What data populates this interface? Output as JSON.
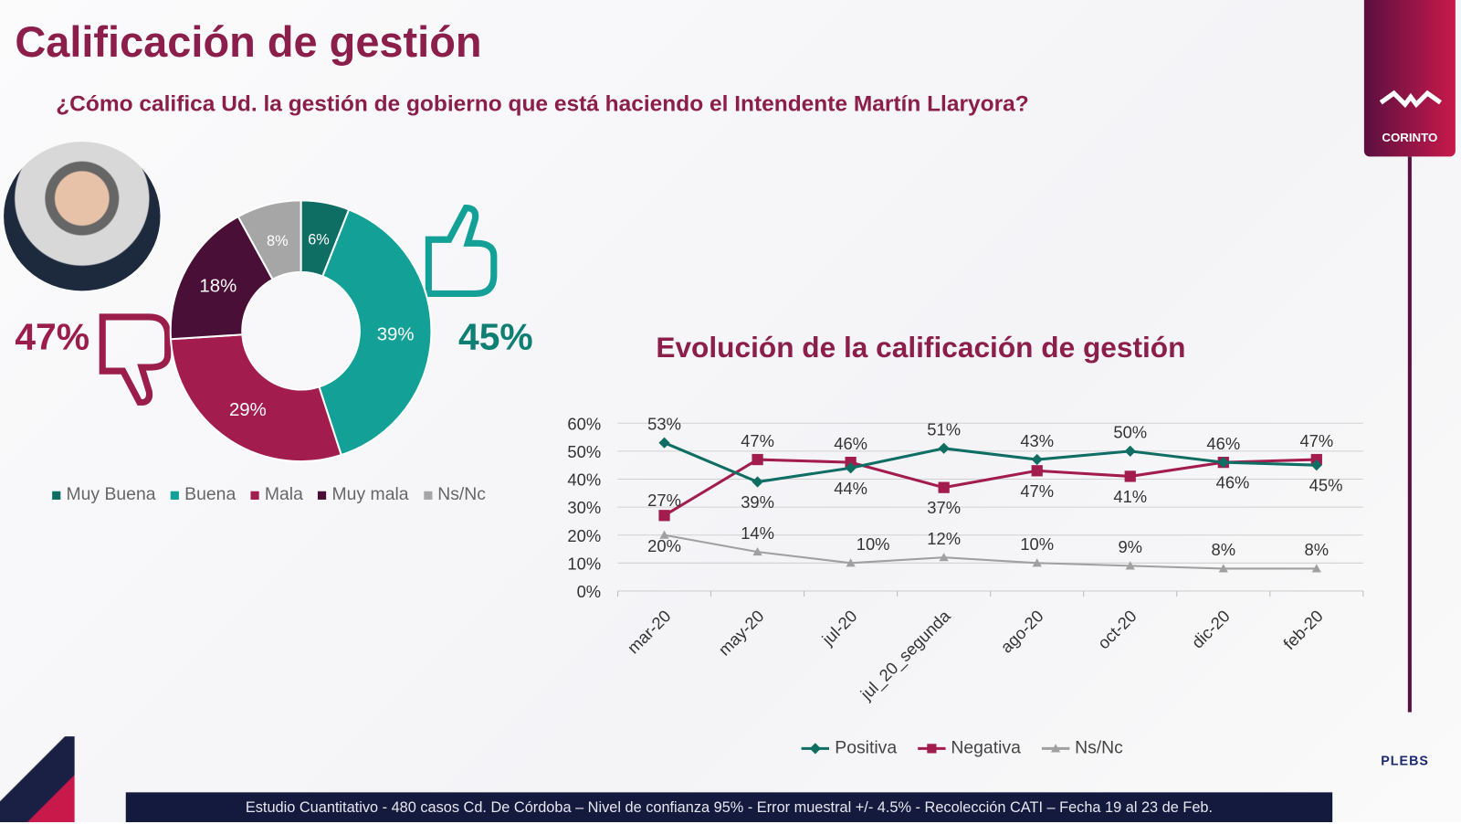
{
  "header": {
    "title": "Calificación de gestión",
    "question": "¿Cómo califica Ud. la gestión de gobierno que está haciendo el Intendente Martín Llaryora?"
  },
  "brand": {
    "name": "CORINTO",
    "partner": "PLEBS"
  },
  "summary": {
    "negative": "47%",
    "positive": "45%"
  },
  "footer": "Estudio Cuantitativo - 480 casos Cd. De Córdoba – Nivel de confianza 95% - Error muestral +/- 4.5% - Recolección CATI – Fecha 19 al 23 de Feb.",
  "chart_data": [
    {
      "type": "pie",
      "donut": true,
      "slices": [
        {
          "name": "Muy Buena",
          "value": 6,
          "label": "6%",
          "color": "#0f6e63"
        },
        {
          "name": "Buena",
          "value": 39,
          "label": "39%",
          "color": "#13a096"
        },
        {
          "name": "Mala",
          "value": 29,
          "label": "29%",
          "color": "#a31c4e"
        },
        {
          "name": "Muy mala",
          "value": 18,
          "label": "18%",
          "color": "#4a0f36"
        },
        {
          "name": "Ns/Nc",
          "value": 8,
          "label": "8%",
          "color": "#a6a6a6"
        }
      ],
      "legend_position": "bottom"
    },
    {
      "type": "line",
      "title": "Evolución de la calificación de gestión",
      "categories": [
        "mar-20",
        "may-20",
        "jul-20",
        "jul_20_segunda",
        "ago-20",
        "oct-20",
        "dic-20",
        "feb-20"
      ],
      "yticks": [
        "0%",
        "10%",
        "20%",
        "30%",
        "40%",
        "50%",
        "60%"
      ],
      "ylim": [
        0,
        60
      ],
      "grid": true,
      "series": [
        {
          "name": "Positiva",
          "values": [
            53,
            39,
            44,
            51,
            47,
            50,
            46,
            45
          ],
          "color": "#0f6e63",
          "marker": "diamond"
        },
        {
          "name": "Negativa",
          "values": [
            27,
            47,
            46,
            37,
            43,
            41,
            46,
            47
          ],
          "color": "#a31c4e",
          "marker": "square"
        },
        {
          "name": "Ns/Nc",
          "values": [
            20,
            14,
            10,
            12,
            10,
            9,
            8,
            8
          ],
          "color": "#a0a0a0",
          "marker": "triangle"
        }
      ],
      "labels_top": [
        "53%",
        "47%",
        "46%",
        "51%",
        "43%",
        "50%",
        "46%",
        "47%"
      ],
      "labels_bottom": [
        "27%",
        "39%",
        "44%",
        "37%",
        "47%",
        "41%",
        "46%",
        "45%"
      ],
      "labels_nsnc": [
        "20%",
        "14%",
        "10%",
        "12%",
        "10%",
        "9%",
        "8%",
        "8%"
      ],
      "legend_position": "bottom"
    }
  ]
}
